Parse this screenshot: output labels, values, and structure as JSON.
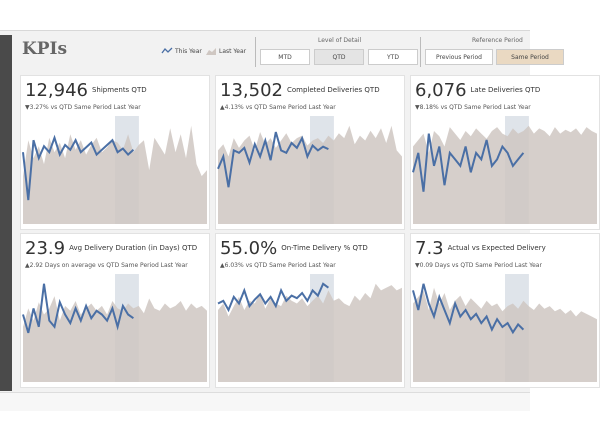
{
  "header": {
    "title": "KPIs",
    "legend": {
      "this_year": "This Year",
      "last_year": "Last Year"
    },
    "level_of_detail": {
      "label": "Level of Detail",
      "options": [
        "MTD",
        "QTD",
        "YTD"
      ],
      "selected": 1
    },
    "reference_period": {
      "label": "Reference Period",
      "options": [
        "Previous Period",
        "Same Period"
      ],
      "selected": 1
    }
  },
  "kpis": [
    {
      "value": "12,946",
      "label": "Shipments QTD",
      "comparison": "▼3.27% vs QTD Same Period Last Year",
      "this_year": [
        60,
        20,
        70,
        55,
        65,
        60,
        72,
        58,
        66,
        62,
        70,
        60,
        64,
        68,
        58,
        62,
        66,
        70,
        60,
        63,
        58,
        62
      ],
      "last_year": [
        40,
        70,
        55,
        65,
        50,
        72,
        60,
        68,
        55,
        75,
        62,
        70,
        58,
        66,
        72,
        60,
        64,
        70,
        68,
        62,
        75,
        60,
        66,
        70,
        45,
        72,
        65,
        58,
        80,
        60,
        75,
        55,
        82,
        50,
        40,
        45
      ]
    },
    {
      "value": "13,502",
      "label": "Completed Deliveries QTD",
      "comparison": "▲4.13% vs QTD Same Period Last Year",
      "this_year": [
        45,
        55,
        30,
        60,
        58,
        62,
        50,
        65,
        55,
        68,
        52,
        75,
        60,
        58,
        66,
        62,
        70,
        55,
        64,
        60,
        63,
        61
      ],
      "last_year": [
        60,
        65,
        55,
        70,
        62,
        68,
        72,
        60,
        75,
        65,
        70,
        62,
        68,
        74,
        66,
        70,
        72,
        64,
        68,
        70,
        66,
        72,
        68,
        74,
        70,
        80,
        65,
        72,
        68,
        76,
        70,
        78,
        66,
        80,
        60,
        55
      ]
    },
    {
      "value": "6,076",
      "label": "Late Deliveries QTD",
      "comparison": "▼8.18% vs QTD Same Period Last Year",
      "this_year": [
        40,
        55,
        25,
        70,
        45,
        60,
        30,
        55,
        50,
        45,
        60,
        40,
        55,
        50,
        65,
        45,
        50,
        60,
        55,
        45,
        50,
        55
      ],
      "last_year": [
        60,
        65,
        70,
        55,
        72,
        68,
        60,
        75,
        70,
        65,
        72,
        68,
        74,
        70,
        66,
        72,
        75,
        70,
        68,
        74,
        70,
        72,
        76,
        70,
        74,
        72,
        68,
        75,
        70,
        73,
        71,
        74,
        69,
        75,
        72,
        70
      ]
    },
    {
      "value": "23.9",
      "label": "Avg Delivery Duration (in Days) QTD",
      "comparison": "▲2.92 Days on average vs QTD Same Period Last Year",
      "this_year": [
        55,
        40,
        60,
        45,
        80,
        50,
        45,
        65,
        55,
        48,
        60,
        50,
        62,
        52,
        58,
        55,
        50,
        60,
        45,
        62,
        55,
        52
      ],
      "last_year": [
        45,
        60,
        50,
        65,
        55,
        60,
        70,
        50,
        62,
        58,
        66,
        55,
        60,
        64,
        58,
        62,
        55,
        66,
        60,
        58,
        64,
        60,
        62,
        56,
        68,
        60,
        58,
        64,
        60,
        62,
        66,
        58,
        64,
        60,
        62,
        58
      ]
    },
    {
      "value": "55.0%",
      "label": "On-Time Delivery % QTD",
      "comparison": "▲6.03% vs QTD Same Period Last Year",
      "this_year": [
        60,
        62,
        55,
        65,
        60,
        70,
        58,
        63,
        67,
        60,
        65,
        58,
        70,
        62,
        66,
        64,
        68,
        62,
        70,
        66,
        75,
        72
      ],
      "last_year": [
        55,
        60,
        50,
        58,
        65,
        55,
        62,
        60,
        68,
        56,
        64,
        60,
        58,
        66,
        62,
        60,
        64,
        58,
        62,
        66,
        60,
        70,
        62,
        64,
        60,
        58,
        66,
        62,
        68,
        64,
        75,
        70,
        72,
        74,
        70,
        72
      ]
    },
    {
      "value": "7.3",
      "label": "Actual vs Expected Delivery",
      "comparison": "▼0.09 Days vs QTD Same Period Last Year",
      "this_year": [
        70,
        55,
        75,
        60,
        50,
        65,
        55,
        45,
        60,
        50,
        55,
        48,
        52,
        45,
        50,
        40,
        48,
        42,
        45,
        38,
        44,
        40
      ],
      "last_year": [
        60,
        65,
        70,
        55,
        72,
        60,
        68,
        55,
        62,
        66,
        58,
        64,
        60,
        56,
        62,
        58,
        60,
        54,
        58,
        60,
        56,
        62,
        58,
        55,
        60,
        56,
        58,
        54,
        56,
        52,
        55,
        50,
        54,
        52,
        50,
        48
      ]
    }
  ]
}
